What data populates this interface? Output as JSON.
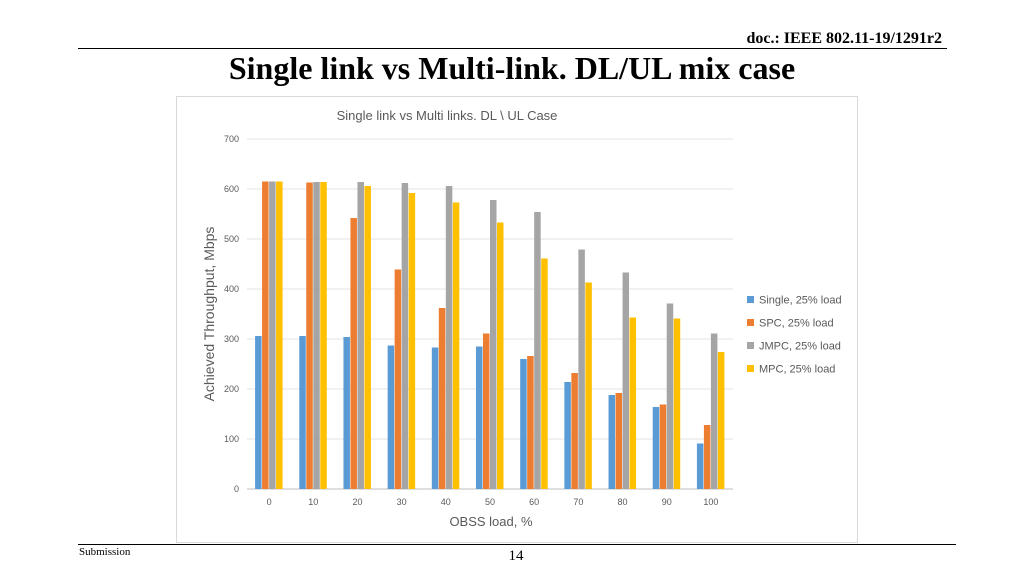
{
  "header": {
    "doc_id": "doc.: IEEE 802.11-19/1291r2",
    "slide_title": "Single link vs Multi-link. DL/UL mix case"
  },
  "footer": {
    "left": "Submission",
    "page": "14"
  },
  "chart_data": {
    "type": "bar",
    "title": "Single link vs Multi links. DL \\ UL Case",
    "xlabel": "OBSS load, %",
    "ylabel": "Achieved Throughput, Mbps",
    "ylim": [
      0,
      700
    ],
    "yticks": [
      0,
      100,
      200,
      300,
      400,
      500,
      600,
      700
    ],
    "grid": "horizontal",
    "legend_position": "right",
    "categories": [
      "0",
      "10",
      "20",
      "30",
      "40",
      "50",
      "60",
      "70",
      "80",
      "90",
      "100"
    ],
    "series": [
      {
        "name": "Single, 25% load",
        "color": "#5b9bd5",
        "values": [
          306,
          306,
          304,
          287,
          283,
          285,
          260,
          214,
          188,
          164,
          91
        ]
      },
      {
        "name": "SPC, 25% load",
        "color": "#ed7d31",
        "values": [
          615,
          613,
          542,
          439,
          362,
          311,
          266,
          232,
          192,
          169,
          128
        ]
      },
      {
        "name": "JMPC, 25% load",
        "color": "#a5a5a5",
        "values": [
          615,
          614,
          614,
          612,
          606,
          578,
          554,
          479,
          433,
          371,
          311
        ]
      },
      {
        "name": "MPC, 25% load",
        "color": "#ffc000",
        "values": [
          615,
          614,
          606,
          592,
          573,
          533,
          461,
          413,
          343,
          341,
          274
        ]
      }
    ]
  }
}
